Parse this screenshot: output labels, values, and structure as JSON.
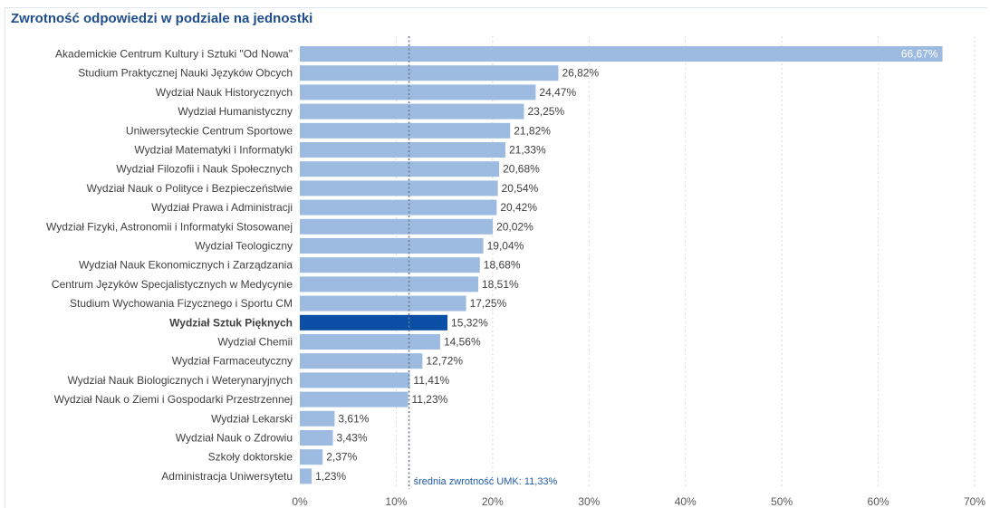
{
  "title": "Zwrotność odpowiedzi w podziale na jednostki",
  "colors": {
    "bar": "#9dbbe0",
    "bar_highlight": "#0a4ea6",
    "title": "#1f4e8c",
    "average_line": "#6e7b8c",
    "average_label": "#1f5aa6"
  },
  "chart_data": {
    "type": "bar",
    "orientation": "horizontal",
    "title": "Zwrotność odpowiedzi w podziale na jednostki",
    "categories": [
      "Akademickie Centrum Kultury i Sztuki \"Od Nowa\"",
      "Studium Praktycznej Nauki Języków Obcych",
      "Wydział Nauk Historycznych",
      "Wydział Humanistyczny",
      "Uniwersyteckie Centrum Sportowe",
      "Wydział Matematyki i Informatyki",
      "Wydział Filozofii i Nauk Społecznych",
      "Wydział Nauk o Polityce i Bezpieczeństwie",
      "Wydział Prawa i Administracji",
      "Wydział Fizyki, Astronomii i Informatyki Stosowanej",
      "Wydział Teologiczny",
      "Wydział Nauk Ekonomicznych i Zarządzania",
      "Centrum Języków Specjalistycznych w Medycynie",
      "Studium Wychowania Fizycznego i Sportu CM",
      "Wydział Sztuk Pięknych",
      "Wydział Chemii",
      "Wydział Farmaceutyczny",
      "Wydział Nauk Biologicznych i Weterynaryjnych",
      "Wydział Nauk o Ziemi i Gospodarki Przestrzennej",
      "Wydział Lekarski",
      "Wydział Nauk o Zdrowiu",
      "Szkoły doktorskie",
      "Administracja Uniwersytetu"
    ],
    "values": [
      66.67,
      26.82,
      24.47,
      23.25,
      21.82,
      21.33,
      20.68,
      20.54,
      20.42,
      20.02,
      19.04,
      18.68,
      18.51,
      17.25,
      15.32,
      14.56,
      12.72,
      11.41,
      11.23,
      3.61,
      3.43,
      2.37,
      1.23
    ],
    "value_labels": [
      "66,67%",
      "26,82%",
      "24,47%",
      "23,25%",
      "21,82%",
      "21,33%",
      "20,68%",
      "20,54%",
      "20,42%",
      "20,02%",
      "19,04%",
      "18,68%",
      "18,51%",
      "17,25%",
      "15,32%",
      "14,56%",
      "12,72%",
      "11,41%",
      "11,23%",
      "3,61%",
      "3,43%",
      "2,37%",
      "1,23%"
    ],
    "highlight_index": 14,
    "xlim": [
      0,
      70
    ],
    "x_ticks": [
      0,
      10,
      20,
      30,
      40,
      50,
      60,
      70
    ],
    "x_tick_labels": [
      "0%",
      "10%",
      "20%",
      "30%",
      "40%",
      "50%",
      "60%",
      "70%"
    ],
    "grid": true,
    "average": {
      "value": 11.33,
      "label": "średnia zwrotność UMK: 11,33%"
    }
  }
}
